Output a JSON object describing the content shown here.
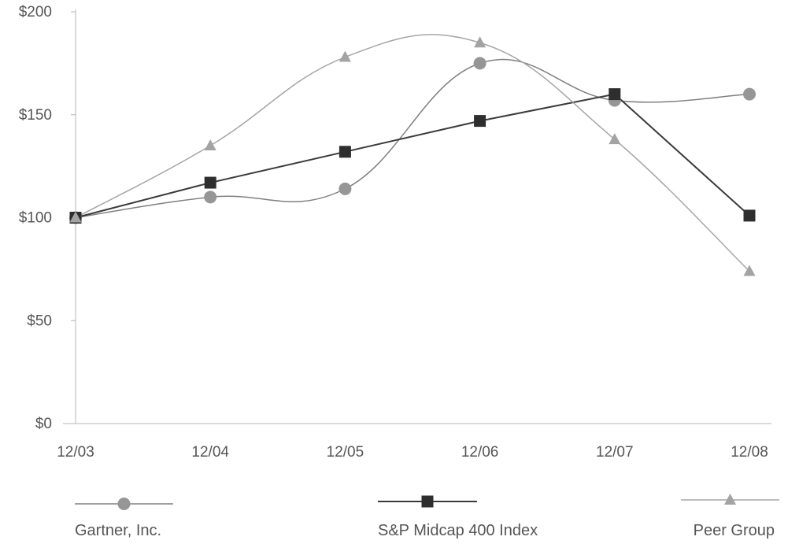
{
  "chart_data": {
    "type": "line",
    "categories": [
      "12/03",
      "12/04",
      "12/05",
      "12/06",
      "12/07",
      "12/08"
    ],
    "ylim": [
      0,
      200
    ],
    "yticks": [
      0,
      50,
      100,
      150,
      200
    ],
    "ytick_labels": [
      "$0",
      "$50",
      "$100",
      "$150",
      "$200"
    ],
    "grid": false,
    "curve": "smooth",
    "legend_position": "bottom",
    "series": [
      {
        "name": "Gartner, Inc.",
        "values": [
          100,
          110,
          114,
          175,
          157,
          160
        ],
        "color": "#808080",
        "marker_color": "#969696",
        "marker": "circle"
      },
      {
        "name": "S&P Midcap 400 Index",
        "values": [
          100,
          117,
          132,
          147,
          160,
          101
        ],
        "color": "#3a3a3a",
        "marker_color": "#2e2e2e",
        "marker": "square"
      },
      {
        "name": "Peer Group",
        "values": [
          100,
          135,
          178,
          185,
          138,
          74
        ],
        "color": "#a6a6a6",
        "marker_color": "#a3a3a3",
        "marker": "triangle"
      }
    ]
  }
}
